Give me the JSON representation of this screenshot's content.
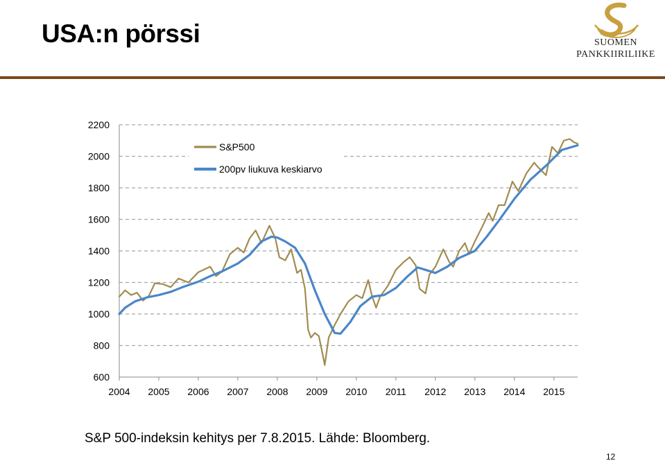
{
  "slide": {
    "title": "USA:n pörssi",
    "caption": "S&P 500-indeksin kehitys per 7.8.2015. Lähde: Bloomberg.",
    "page_number": "12"
  },
  "logo": {
    "line1": "SUOMEN",
    "line2": "PANKKIIRILIIKE"
  },
  "colors": {
    "sp500": "#a08c50",
    "ma200": "#4a86c8",
    "grid": "#a6a6a6",
    "title_rule": "#7a4a1a",
    "logo_gold": "#c9a040"
  },
  "chart_data": {
    "type": "line",
    "title": "",
    "xlabel": "",
    "ylabel": "",
    "ylim": [
      600,
      2200
    ],
    "yticks": [
      "2200",
      "2000",
      "1800",
      "1600",
      "1400",
      "1200",
      "1000",
      "800",
      "600"
    ],
    "xlim": [
      2004.0,
      2015.6
    ],
    "xticks": [
      "2004",
      "2005",
      "2006",
      "2007",
      "2008",
      "2009",
      "2010",
      "2011",
      "2012",
      "2013",
      "2014",
      "2015"
    ],
    "grid": "horizontal dashed",
    "legend_position": "top-left",
    "series": [
      {
        "name": "S&P500",
        "points": [
          [
            2004.0,
            1110
          ],
          [
            2004.15,
            1150
          ],
          [
            2004.3,
            1120
          ],
          [
            2004.45,
            1135
          ],
          [
            2004.6,
            1085
          ],
          [
            2004.75,
            1115
          ],
          [
            2004.9,
            1195
          ],
          [
            2005.1,
            1190
          ],
          [
            2005.3,
            1170
          ],
          [
            2005.5,
            1225
          ],
          [
            2005.75,
            1200
          ],
          [
            2006.0,
            1265
          ],
          [
            2006.3,
            1300
          ],
          [
            2006.45,
            1240
          ],
          [
            2006.6,
            1270
          ],
          [
            2006.8,
            1380
          ],
          [
            2007.0,
            1420
          ],
          [
            2007.15,
            1390
          ],
          [
            2007.3,
            1480
          ],
          [
            2007.45,
            1530
          ],
          [
            2007.6,
            1450
          ],
          [
            2007.8,
            1560
          ],
          [
            2007.95,
            1480
          ],
          [
            2008.05,
            1360
          ],
          [
            2008.2,
            1340
          ],
          [
            2008.35,
            1410
          ],
          [
            2008.5,
            1260
          ],
          [
            2008.6,
            1280
          ],
          [
            2008.7,
            1160
          ],
          [
            2008.78,
            900
          ],
          [
            2008.85,
            850
          ],
          [
            2008.95,
            880
          ],
          [
            2009.05,
            860
          ],
          [
            2009.15,
            740
          ],
          [
            2009.2,
            676
          ],
          [
            2009.3,
            850
          ],
          [
            2009.45,
            930
          ],
          [
            2009.6,
            1000
          ],
          [
            2009.8,
            1080
          ],
          [
            2010.0,
            1120
          ],
          [
            2010.15,
            1100
          ],
          [
            2010.3,
            1215
          ],
          [
            2010.4,
            1110
          ],
          [
            2010.5,
            1040
          ],
          [
            2010.6,
            1110
          ],
          [
            2010.8,
            1180
          ],
          [
            2011.0,
            1280
          ],
          [
            2011.2,
            1330
          ],
          [
            2011.35,
            1360
          ],
          [
            2011.5,
            1310
          ],
          [
            2011.6,
            1160
          ],
          [
            2011.75,
            1130
          ],
          [
            2011.85,
            1250
          ],
          [
            2012.0,
            1300
          ],
          [
            2012.2,
            1410
          ],
          [
            2012.35,
            1330
          ],
          [
            2012.45,
            1300
          ],
          [
            2012.6,
            1400
          ],
          [
            2012.75,
            1450
          ],
          [
            2012.85,
            1380
          ],
          [
            2013.0,
            1460
          ],
          [
            2013.2,
            1560
          ],
          [
            2013.35,
            1640
          ],
          [
            2013.45,
            1590
          ],
          [
            2013.6,
            1690
          ],
          [
            2013.75,
            1690
          ],
          [
            2013.95,
            1840
          ],
          [
            2014.1,
            1780
          ],
          [
            2014.3,
            1890
          ],
          [
            2014.5,
            1960
          ],
          [
            2014.6,
            1930
          ],
          [
            2014.8,
            1880
          ],
          [
            2014.95,
            2060
          ],
          [
            2015.1,
            2020
          ],
          [
            2015.25,
            2100
          ],
          [
            2015.4,
            2110
          ],
          [
            2015.5,
            2090
          ],
          [
            2015.6,
            2080
          ]
        ]
      },
      {
        "name": "200pv liukuva keskiarvo",
        "points": [
          [
            2004.0,
            1000
          ],
          [
            2004.15,
            1040
          ],
          [
            2004.4,
            1080
          ],
          [
            2004.7,
            1105
          ],
          [
            2005.0,
            1120
          ],
          [
            2005.3,
            1140
          ],
          [
            2005.6,
            1170
          ],
          [
            2006.0,
            1205
          ],
          [
            2006.3,
            1240
          ],
          [
            2006.6,
            1270
          ],
          [
            2007.0,
            1320
          ],
          [
            2007.3,
            1375
          ],
          [
            2007.6,
            1460
          ],
          [
            2007.85,
            1490
          ],
          [
            2008.0,
            1485
          ],
          [
            2008.2,
            1460
          ],
          [
            2008.45,
            1420
          ],
          [
            2008.7,
            1320
          ],
          [
            2008.95,
            1150
          ],
          [
            2009.2,
            1000
          ],
          [
            2009.45,
            880
          ],
          [
            2009.6,
            875
          ],
          [
            2009.85,
            950
          ],
          [
            2010.1,
            1050
          ],
          [
            2010.4,
            1110
          ],
          [
            2010.7,
            1120
          ],
          [
            2011.0,
            1165
          ],
          [
            2011.3,
            1240
          ],
          [
            2011.55,
            1295
          ],
          [
            2011.75,
            1280
          ],
          [
            2012.0,
            1260
          ],
          [
            2012.3,
            1300
          ],
          [
            2012.6,
            1355
          ],
          [
            2013.0,
            1400
          ],
          [
            2013.3,
            1490
          ],
          [
            2013.6,
            1590
          ],
          [
            2014.0,
            1730
          ],
          [
            2014.4,
            1850
          ],
          [
            2014.8,
            1940
          ],
          [
            2015.2,
            2040
          ],
          [
            2015.6,
            2070
          ]
        ]
      }
    ]
  }
}
